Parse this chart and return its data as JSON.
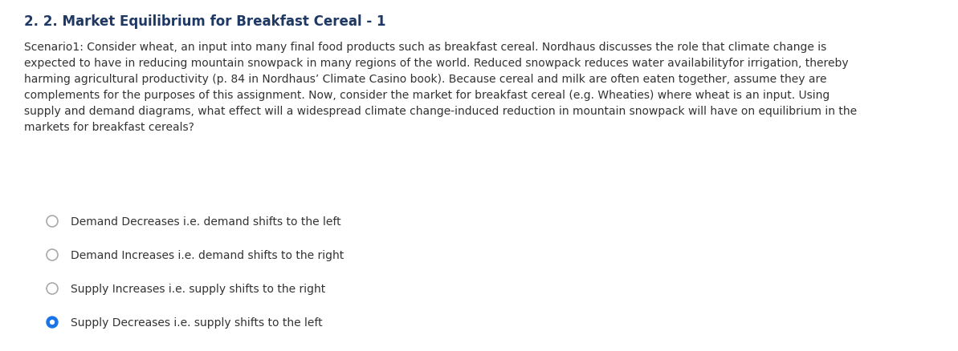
{
  "title": "2. 2. Market Equilibrium for Breakfast Cereal - 1",
  "title_color": "#1f3864",
  "title_fontsize": 12,
  "body_lines": [
    "Scenario1: Consider wheat, an input into many final food products such as breakfast cereal. Nordhaus discusses the role that climate change is",
    "expected to have in reducing mountain snowpack in many regions of the world. Reduced snowpack reduces water availabilityfor irrigation, thereby",
    "harming agricultural productivity (p. 84 in Nordhaus’ Climate Casino book). Because cereal and milk are often eaten together, assume they are",
    "complements for the purposes of this assignment. Now, consider the market for breakfast cereal (e.g. Wheaties) where wheat is an input. Using",
    "supply and demand diagrams, what effect will a widespread climate change-induced reduction in mountain snowpack will have on equilibrium in the",
    "markets for breakfast cereals?"
  ],
  "body_fontsize": 10,
  "body_color": "#333333",
  "options": [
    "Demand Decreases i.e. demand shifts to the left",
    "Demand Increases i.e. demand shifts to the right",
    "Supply Increases i.e. supply shifts to the right",
    "Supply Decreases i.e. supply shifts to the left"
  ],
  "selected_option": 3,
  "option_fontsize": 10,
  "option_color": "#333333",
  "radio_unselected_edge": "#aaaaaa",
  "radio_selected_color": "#1a73e8",
  "background_color": "#ffffff",
  "fig_width": 11.93,
  "fig_height": 4.39,
  "dpi": 100
}
